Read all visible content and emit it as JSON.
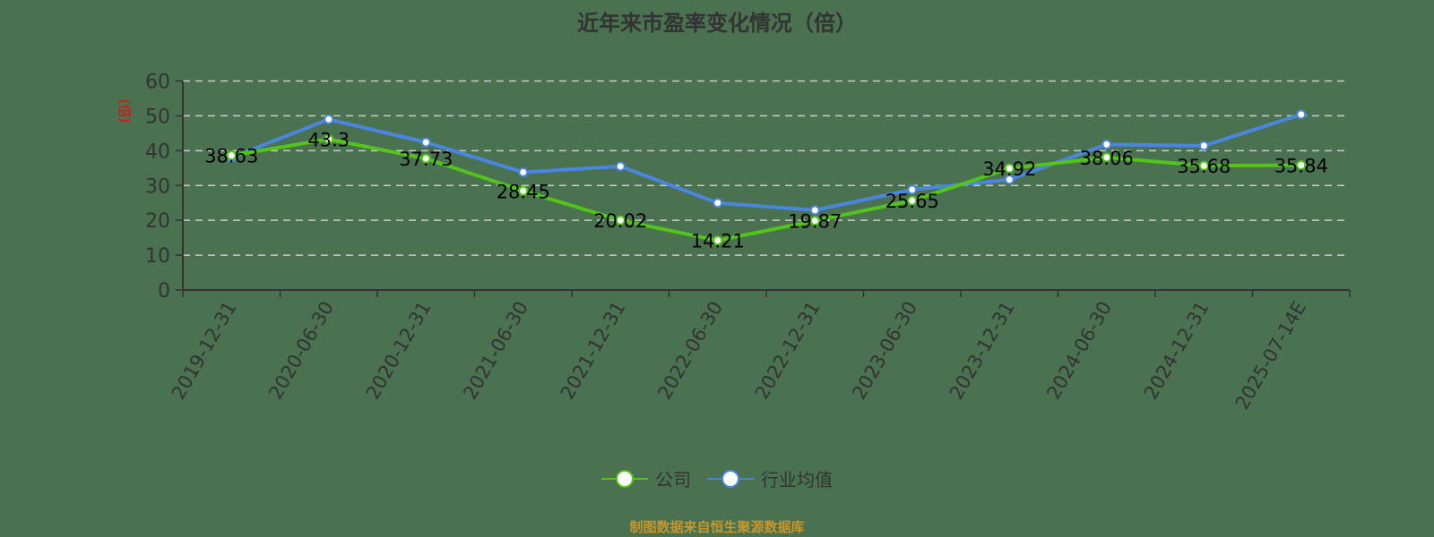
{
  "title": "近年来市盈率变化情况（倍）",
  "footer": "制图数据来自恒生聚源数据库",
  "colors": {
    "background": "#4a7150",
    "company": "#52c41a",
    "industry": "#4a86e0",
    "axis": "#333333",
    "grid": "#cccccc",
    "ylabel": "#ff0000",
    "footer": "#c8962a"
  },
  "legend": {
    "items": [
      {
        "label": "公司",
        "color": "#52c41a"
      },
      {
        "label": "行业均值",
        "color": "#4a86e0"
      }
    ]
  },
  "chart_data": {
    "type": "line",
    "title": "近年来市盈率变化情况（倍）",
    "xlabel": "",
    "ylabel": "(倍)",
    "ylim": [
      0,
      60
    ],
    "yticks": [
      0,
      10,
      20,
      30,
      40,
      50,
      60
    ],
    "grid": true,
    "legend_position": "bottom",
    "categories": [
      "2019-12-31",
      "2020-06-30",
      "2020-12-31",
      "2021-06-30",
      "2021-12-31",
      "2022-06-30",
      "2022-12-31",
      "2023-06-30",
      "2023-12-31",
      "2024-06-30",
      "2024-12-31",
      "2025-07-14E"
    ],
    "series": [
      {
        "name": "公司",
        "values": [
          38.63,
          43.3,
          37.73,
          28.45,
          20.02,
          14.21,
          19.87,
          25.65,
          34.92,
          38.06,
          35.68,
          35.84
        ],
        "labeled": true
      },
      {
        "name": "行业均值",
        "values": [
          38.0,
          49.0,
          42.4,
          33.8,
          35.5,
          25.0,
          22.9,
          28.8,
          31.7,
          41.8,
          41.4,
          50.4
        ],
        "labeled": false
      }
    ]
  }
}
